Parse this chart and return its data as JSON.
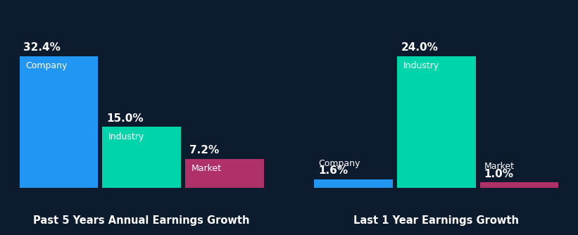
{
  "background_color": "#0d1b2e",
  "chart1": {
    "title": "Past 5 Years Annual Earnings Growth",
    "categories": [
      "Company",
      "Industry",
      "Market"
    ],
    "values": [
      32.4,
      15.0,
      7.2
    ],
    "colors": [
      "#2196f3",
      "#00d4aa",
      "#b0306a"
    ]
  },
  "chart2": {
    "title": "Last 1 Year Earnings Growth",
    "categories": [
      "Company",
      "Industry",
      "Market"
    ],
    "values": [
      1.6,
      24.0,
      1.0
    ],
    "colors": [
      "#2196f3",
      "#00d4aa",
      "#b0306a"
    ]
  },
  "label_color": "#ffffff",
  "title_color": "#ffffff",
  "title_fontsize": 10.5,
  "value_fontsize": 11,
  "bar_label_fontsize": 9,
  "bar_width": 0.95,
  "inner_label_threshold": 5.0
}
